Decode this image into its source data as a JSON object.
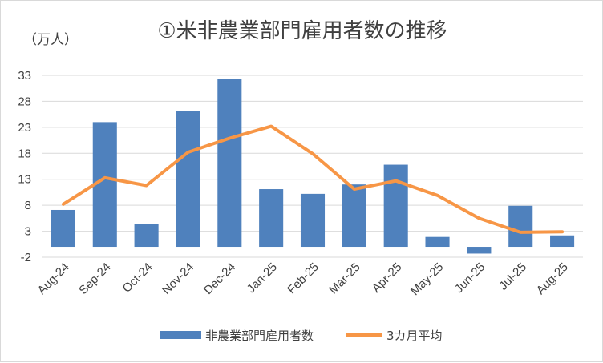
{
  "chart_data": {
    "type": "bar",
    "title": "①米非農業部門雇用者数の推移",
    "unit_label": "（万人）",
    "categories": [
      "Aug-24",
      "Sep-24",
      "Oct-24",
      "Nov-24",
      "Dec-24",
      "Jan-25",
      "Feb-25",
      "Mar-25",
      "Apr-25",
      "May-25",
      "Jun-25",
      "Jul-25",
      "Aug-25"
    ],
    "yticks": [
      -2,
      3,
      8,
      13,
      18,
      23,
      28,
      33
    ],
    "ylim": [
      -2,
      33
    ],
    "grid": true,
    "legend_position": "bottom",
    "series": [
      {
        "name": "非農業部門雇用者数",
        "type": "bar",
        "color": "#4f81bd",
        "values": [
          7.1,
          24.0,
          4.4,
          26.1,
          32.3,
          11.1,
          10.2,
          12.0,
          15.8,
          1.9,
          -1.3,
          7.9,
          2.2
        ]
      },
      {
        "name": "3カ月平均",
        "type": "line",
        "color": "#f79646",
        "values": [
          8.2,
          13.3,
          11.8,
          18.2,
          20.9,
          23.2,
          17.9,
          11.1,
          12.7,
          9.9,
          5.5,
          2.8,
          2.9
        ]
      }
    ]
  }
}
